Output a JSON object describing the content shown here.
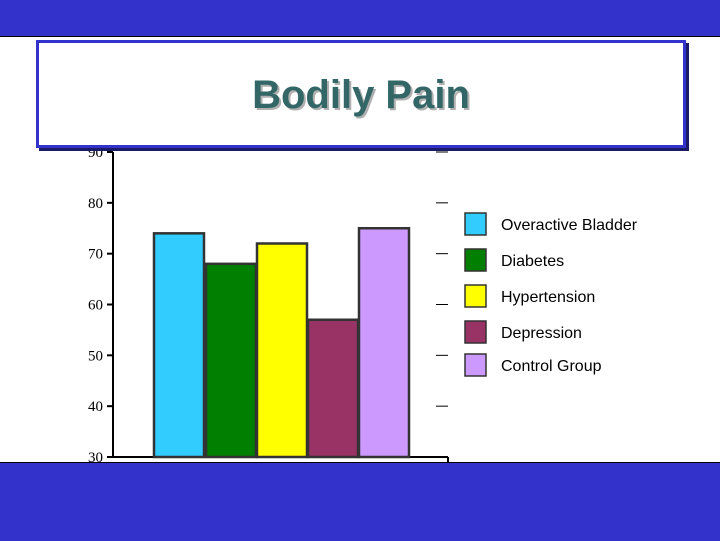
{
  "chart_data": {
    "type": "bar",
    "title": "Bodily Pain",
    "xlabel": "",
    "ylabel": "",
    "ylim": [
      30,
      90
    ],
    "yticks": [
      30,
      40,
      50,
      60,
      70,
      80,
      90
    ],
    "grid": false,
    "legend_position": "right",
    "series": [
      {
        "name": "Overactive Bladder",
        "value": 74,
        "color": "#33ccff"
      },
      {
        "name": "Diabetes",
        "value": 68,
        "color": "#007f00"
      },
      {
        "name": "Hypertension",
        "value": 72,
        "color": "#ffff00"
      },
      {
        "name": "Depression",
        "value": 57,
        "color": "#993366"
      },
      {
        "name": "Control Group",
        "value": 75,
        "color": "#cc99ff"
      }
    ]
  },
  "colors": {
    "band": "#3333cc",
    "title_text": "#336666"
  }
}
